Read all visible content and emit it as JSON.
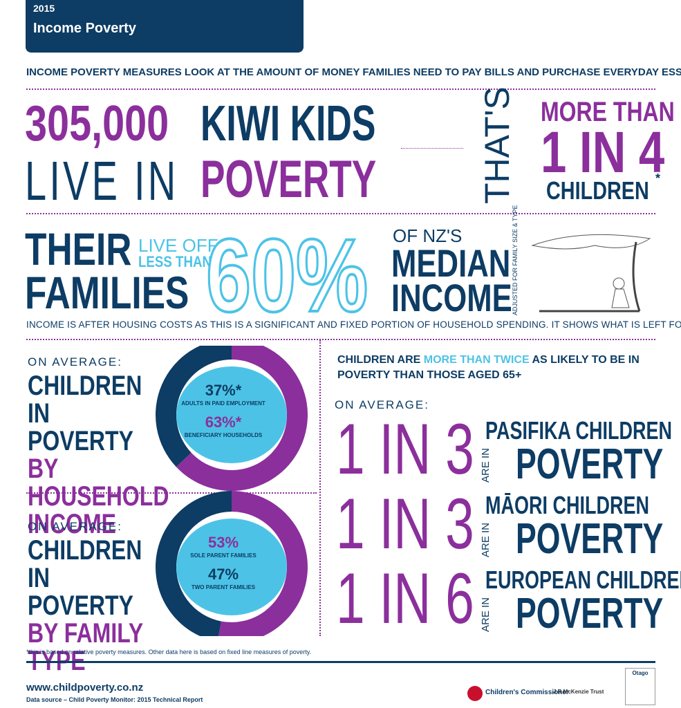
{
  "header": {
    "year": "2015",
    "title": "Income Poverty"
  },
  "intro": "Income poverty measures look at the amount of money families need to pay bills and purchase everyday essentials",
  "headline": {
    "number": "305,000",
    "kiwi": "KIWI KIDS",
    "live_in": "LIVE IN",
    "poverty": "POVERTY",
    "thats": "THAT'S",
    "more_than": "MORE THAN",
    "ratio": "1 IN 4",
    "children": "CHILDREN",
    "asterisk": "*"
  },
  "median": {
    "their": "THEIR",
    "families": "FAMILIES",
    "live_off": "LIVE OFF",
    "less_than": "LESS THAN",
    "percent": "60%",
    "of_nz": "OF NZ'S",
    "median": "MEDIAN",
    "income": "INCOME",
    "side": "ADJUSTED FOR FAMILY SIZE & TYPE",
    "note": "Income is after housing costs as this is a significant and fixed portion of household spending. It shows what is left for other essentials."
  },
  "household": {
    "on_average": "ON AVERAGE:",
    "title_a": "CHILDREN IN POVERTY",
    "title_b": "BY",
    "title_c": "HOUSEHOLD INCOME",
    "segments": [
      {
        "value": 37,
        "label": "37%*",
        "text": "ADULTS IN PAID EMPLOYMENT"
      },
      {
        "value": 63,
        "label": "63%*",
        "text": "BENEFICIARY HOUSEHOLDS"
      }
    ]
  },
  "family": {
    "on_average": "ON AVERAGE:",
    "title_a": "CHILDREN IN POVERTY",
    "title_b": "BY",
    "title_c": "FAMILY TYPE",
    "segments": [
      {
        "value": 53,
        "label": "53%",
        "text": "SOLE PARENT FAMILIES"
      },
      {
        "value": 47,
        "label": "47%",
        "text": "TWO PARENT FAMILIES"
      }
    ]
  },
  "age": {
    "a": "CHILDREN ARE",
    "b": "MORE THAN TWICE",
    "c": "AS LIKELY TO BE IN POVERTY THAN THOSE AGED 65+"
  },
  "ethnic": {
    "on_average": "ON AVERAGE:",
    "rows": [
      {
        "ratio": "1 IN 3",
        "are_in": "ARE IN",
        "group": "PASIFIKA CHILDREN",
        "poverty": "POVERTY"
      },
      {
        "ratio": "1 IN 3",
        "are_in": "ARE IN",
        "group": "MĀORI CHILDREN",
        "poverty": "POVERTY"
      },
      {
        "ratio": "1 IN 6",
        "are_in": "ARE IN",
        "group": "EUROPEAN CHILDREN",
        "poverty": "POVERTY"
      }
    ]
  },
  "footnote": "*this is based on relative poverty measures. Other data here is based on fixed line measures of poverty.",
  "footer": {
    "url": "www.childpoverty.co.nz",
    "source": "Data source – Child Poverty Monitor: 2015 Technical Report",
    "logos": [
      "Children's Commissioner",
      "J R McKenzie Trust",
      "Otago"
    ]
  }
}
